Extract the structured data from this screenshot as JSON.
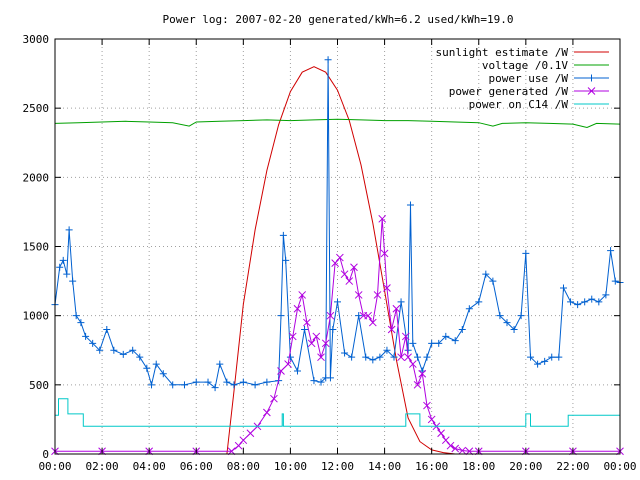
{
  "chart_data": {
    "type": "line",
    "title": "Power log: 2007-02-20 generated/kWh=6.2 used/kWh=19.0",
    "x_unit": "hour",
    "xlim": [
      0,
      24
    ],
    "ylim": [
      0,
      3000
    ],
    "x_tick_labels": [
      "00:00",
      "02:00",
      "04:00",
      "06:00",
      "08:00",
      "10:00",
      "12:00",
      "14:00",
      "16:00",
      "18:00",
      "20:00",
      "22:00",
      "00:00"
    ],
    "y_tick_labels": [
      "0",
      "500",
      "1000",
      "1500",
      "2000",
      "2500",
      "3000"
    ],
    "grid": true,
    "legend_position": "top-right",
    "series": [
      {
        "name": "sunlight estimate /W",
        "color": "#d00000",
        "marker": "none",
        "x": [
          7.3,
          7.6,
          8.0,
          8.5,
          9.0,
          9.5,
          10.0,
          10.5,
          11.0,
          11.5,
          12.0,
          12.5,
          13.0,
          13.5,
          14.0,
          14.5,
          15.0,
          15.5,
          16.0,
          16.5,
          17.0
        ],
        "y": [
          0,
          450,
          1080,
          1620,
          2050,
          2380,
          2620,
          2760,
          2800,
          2760,
          2630,
          2410,
          2090,
          1670,
          1180,
          680,
          260,
          90,
          30,
          10,
          0
        ]
      },
      {
        "name": "voltage /0.1V",
        "color": "#00a000",
        "marker": "none",
        "x": [
          0,
          1,
          2,
          3,
          4,
          5,
          5.7,
          6,
          7,
          8,
          9,
          10,
          11,
          12,
          13,
          14,
          15,
          16,
          17,
          18,
          18.6,
          19,
          20,
          21,
          22,
          22.6,
          23,
          24
        ],
        "y": [
          2390,
          2395,
          2400,
          2405,
          2400,
          2395,
          2370,
          2400,
          2405,
          2410,
          2415,
          2410,
          2415,
          2420,
          2415,
          2410,
          2410,
          2405,
          2400,
          2395,
          2370,
          2390,
          2395,
          2390,
          2385,
          2360,
          2390,
          2385
        ]
      },
      {
        "name": "power use /W",
        "color": "#0060d0",
        "marker": "plus",
        "x": [
          0,
          0.2,
          0.35,
          0.5,
          0.6,
          0.75,
          0.9,
          1.1,
          1.3,
          1.6,
          1.9,
          2.2,
          2.5,
          2.9,
          3.3,
          3.6,
          3.9,
          4.1,
          4.3,
          4.6,
          5.0,
          5.5,
          6.0,
          6.5,
          6.8,
          7.0,
          7.3,
          7.6,
          8.0,
          8.5,
          9.0,
          9.5,
          9.6,
          9.7,
          9.8,
          10.0,
          10.3,
          10.6,
          11.0,
          11.3,
          11.5,
          11.6,
          11.7,
          11.8,
          12.0,
          12.3,
          12.6,
          12.9,
          13.2,
          13.5,
          13.8,
          14.1,
          14.4,
          14.7,
          15.0,
          15.1,
          15.2,
          15.4,
          15.6,
          15.8,
          16.0,
          16.3,
          16.6,
          17.0,
          17.3,
          17.6,
          18.0,
          18.3,
          18.6,
          18.9,
          19.2,
          19.5,
          19.8,
          20.0,
          20.2,
          20.5,
          20.8,
          21.1,
          21.4,
          21.6,
          21.9,
          22.2,
          22.5,
          22.8,
          23.1,
          23.4,
          23.6,
          23.8,
          24.0
        ],
        "y": [
          1080,
          1350,
          1400,
          1300,
          1620,
          1250,
          1000,
          950,
          850,
          800,
          750,
          900,
          750,
          720,
          750,
          700,
          620,
          500,
          650,
          580,
          500,
          500,
          520,
          520,
          480,
          650,
          520,
          500,
          520,
          500,
          520,
          530,
          1000,
          1580,
          1400,
          700,
          600,
          900,
          530,
          520,
          550,
          2850,
          550,
          900,
          1100,
          730,
          700,
          1000,
          700,
          680,
          700,
          750,
          700,
          1100,
          750,
          1800,
          800,
          700,
          600,
          700,
          800,
          800,
          850,
          820,
          900,
          1050,
          1100,
          1300,
          1250,
          1000,
          950,
          900,
          1000,
          1450,
          700,
          650,
          670,
          700,
          700,
          1200,
          1100,
          1080,
          1100,
          1120,
          1100,
          1150,
          1470,
          1250,
          1240
        ]
      },
      {
        "name": "power generated /W",
        "color": "#b000e0",
        "marker": "x",
        "x": [
          0,
          2,
          4,
          6,
          7.5,
          7.8,
          8.0,
          8.3,
          8.6,
          9.0,
          9.3,
          9.6,
          9.9,
          10.1,
          10.3,
          10.5,
          10.7,
          10.9,
          11.1,
          11.3,
          11.5,
          11.7,
          11.9,
          12.1,
          12.3,
          12.5,
          12.7,
          12.9,
          13.1,
          13.3,
          13.5,
          13.7,
          13.9,
          14.0,
          14.1,
          14.3,
          14.5,
          14.7,
          14.9,
          15.0,
          15.2,
          15.4,
          15.6,
          15.8,
          16.0,
          16.2,
          16.4,
          16.6,
          16.8,
          17.0,
          17.3,
          17.6,
          18.0,
          20,
          22,
          24
        ],
        "y": [
          20,
          20,
          20,
          20,
          20,
          60,
          100,
          150,
          200,
          300,
          400,
          600,
          650,
          850,
          1050,
          1150,
          950,
          800,
          850,
          700,
          800,
          1000,
          1380,
          1420,
          1300,
          1250,
          1350,
          1150,
          1000,
          1000,
          950,
          1150,
          1700,
          1450,
          1200,
          900,
          1050,
          700,
          850,
          700,
          650,
          500,
          580,
          350,
          250,
          200,
          150,
          100,
          60,
          40,
          25,
          20,
          20,
          20,
          20,
          20
        ]
      },
      {
        "name": "power on C14 /W",
        "color": "#00c8c8",
        "marker": "none",
        "x": [
          0,
          0.15,
          0.15,
          0.55,
          0.55,
          1.2,
          1.2,
          9.65,
          9.65,
          9.7,
          9.7,
          14.9,
          14.9,
          15.5,
          15.5,
          20.0,
          20.0,
          20.2,
          20.2,
          21.8,
          21.8,
          24
        ],
        "y": [
          280,
          280,
          400,
          400,
          290,
          290,
          200,
          200,
          290,
          290,
          200,
          200,
          290,
          290,
          200,
          200,
          290,
          290,
          200,
          200,
          280,
          280
        ]
      }
    ]
  }
}
